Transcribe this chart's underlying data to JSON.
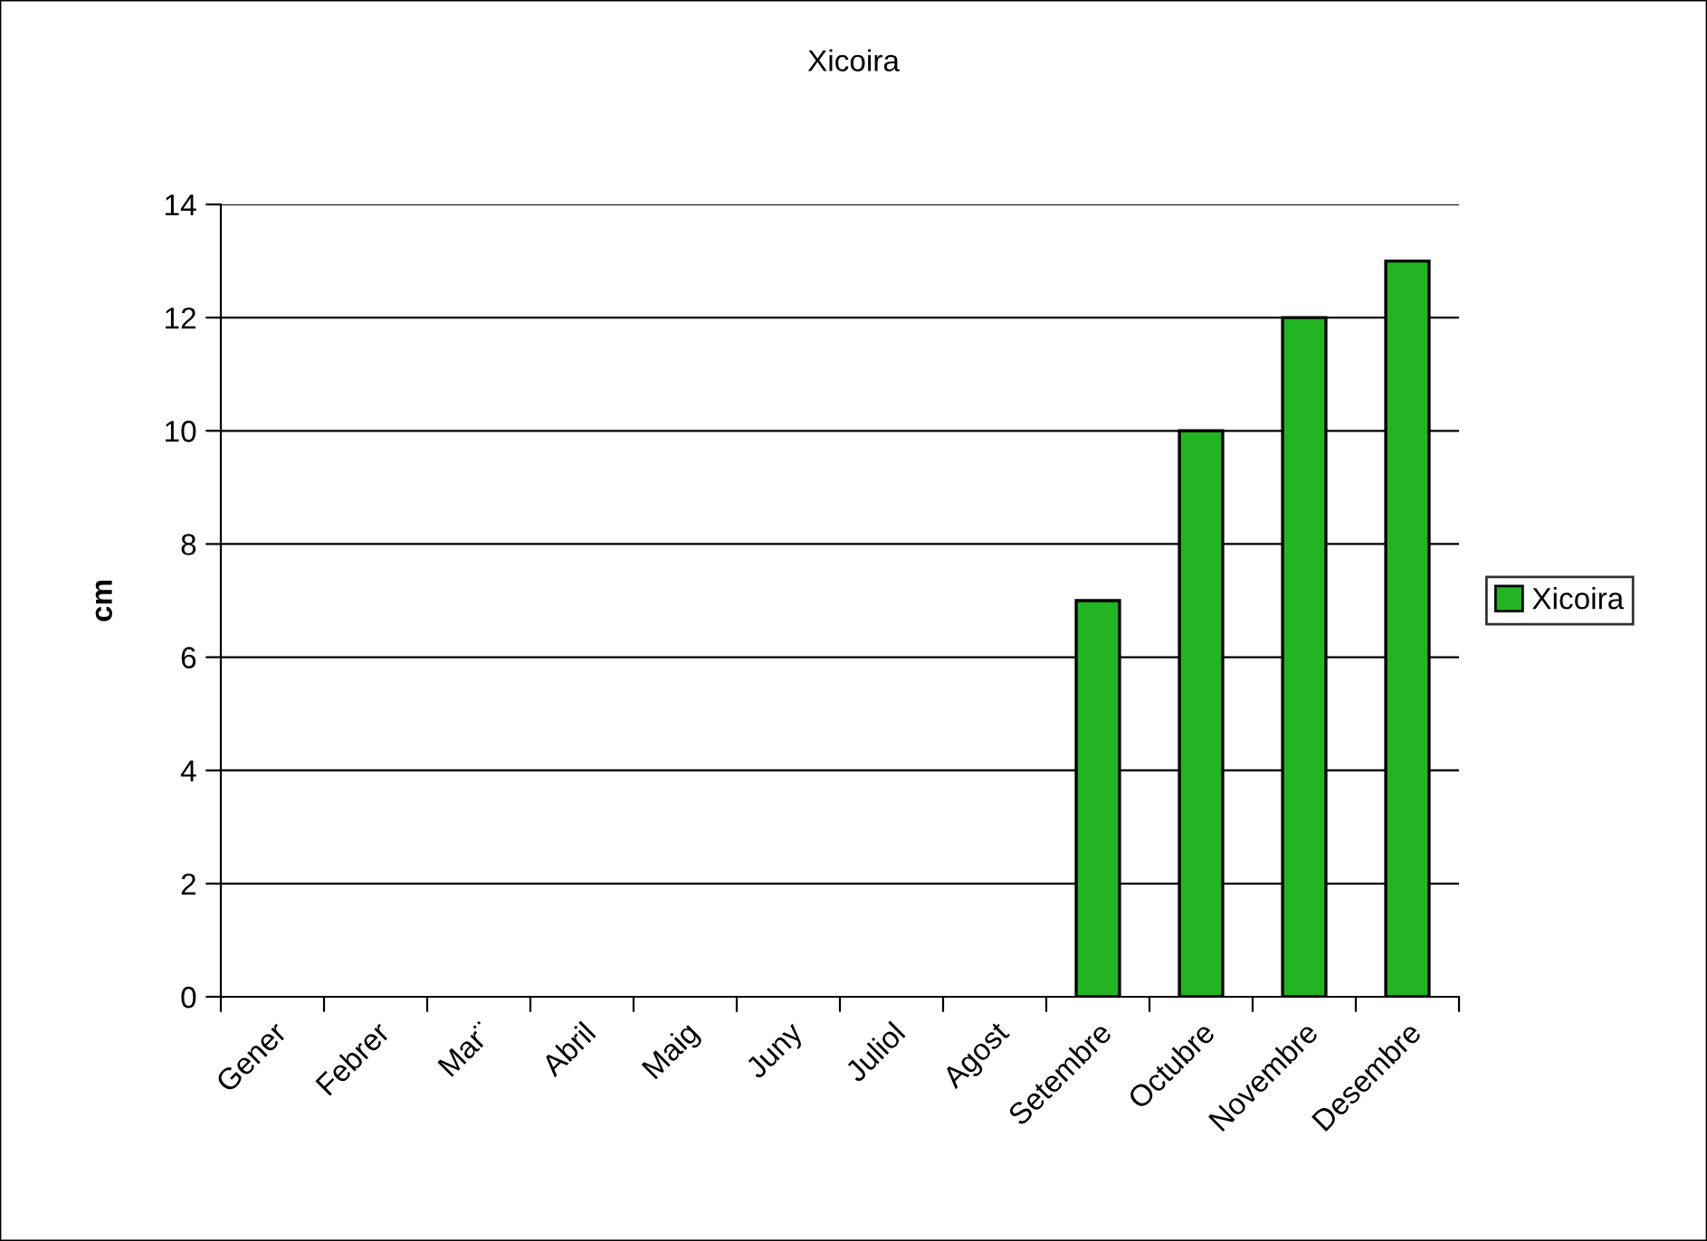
{
  "chart_data": {
    "type": "bar",
    "title": "Xicoira",
    "ylabel": "cm",
    "categories": [
      "Gener",
      "Febrer",
      "Mar¨",
      "Abril",
      "Maig",
      "Juny",
      "Juliol",
      "Agost",
      "Setembre",
      "Octubre",
      "Novembre",
      "Desembre"
    ],
    "series": [
      {
        "name": "Xicoira",
        "color": "#22b422",
        "values": [
          null,
          null,
          null,
          null,
          null,
          null,
          null,
          null,
          7,
          10,
          12,
          13
        ]
      }
    ],
    "ylim": [
      0,
      14
    ],
    "yticks": [
      0,
      2,
      4,
      6,
      8,
      10,
      12,
      14
    ],
    "grid": "y",
    "legend": "right"
  }
}
